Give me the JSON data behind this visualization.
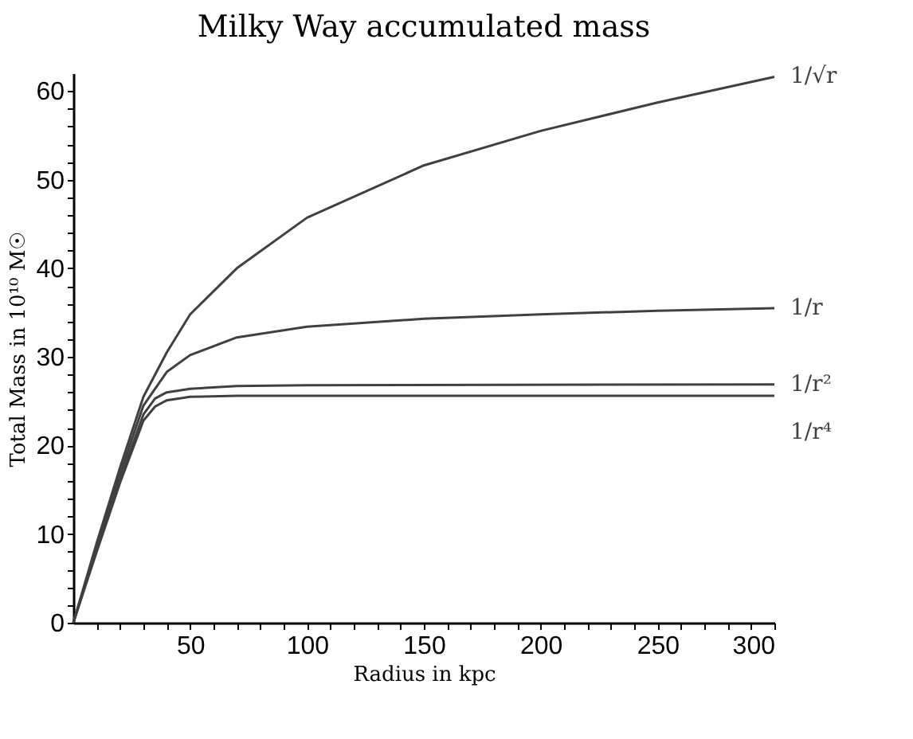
{
  "chart_data": {
    "type": "line",
    "title": "Milky Way accumulated mass",
    "xlabel": "Radius in kpc",
    "ylabel": "Total Mass in 10¹⁰ M☉",
    "xlim": [
      0,
      300
    ],
    "ylim": [
      0,
      62
    ],
    "xticks": [
      {
        "value": 10,
        "label": null
      },
      {
        "value": 20,
        "label": null
      },
      {
        "value": 30,
        "label": null
      },
      {
        "value": 40,
        "label": null
      },
      50,
      {
        "value": 60,
        "label": null
      },
      {
        "value": 70,
        "label": null
      },
      {
        "value": 80,
        "label": null
      },
      {
        "value": 90,
        "label": null
      },
      100,
      {
        "value": 110,
        "label": null
      },
      {
        "value": 120,
        "label": null
      },
      {
        "value": 130,
        "label": null
      },
      {
        "value": 140,
        "label": null
      },
      150,
      {
        "value": 160,
        "label": null
      },
      {
        "value": 170,
        "label": null
      },
      {
        "value": 180,
        "label": null
      },
      {
        "value": 190,
        "label": null
      },
      200,
      {
        "value": 210,
        "label": null
      },
      {
        "value": 220,
        "label": null
      },
      {
        "value": 230,
        "label": null
      },
      {
        "value": 240,
        "label": null
      },
      250,
      {
        "value": 260,
        "label": null
      },
      {
        "value": 270,
        "label": null
      },
      {
        "value": 280,
        "label": null
      },
      {
        "value": 290,
        "label": null
      },
      300
    ],
    "yticks": [
      0,
      {
        "value": 2,
        "label": null
      },
      {
        "value": 4,
        "label": null
      },
      {
        "value": 6,
        "label": null
      },
      {
        "value": 8,
        "label": null
      },
      10,
      {
        "value": 12,
        "label": null
      },
      {
        "value": 14,
        "label": null
      },
      {
        "value": 16,
        "label": null
      },
      {
        "value": 18,
        "label": null
      },
      20,
      {
        "value": 22,
        "label": null
      },
      {
        "value": 24,
        "label": null
      },
      {
        "value": 26,
        "label": null
      },
      {
        "value": 28,
        "label": null
      },
      30,
      {
        "value": 32,
        "label": null
      },
      {
        "value": 34,
        "label": null
      },
      {
        "value": 36,
        "label": null
      },
      {
        "value": 38,
        "label": null
      },
      40,
      {
        "value": 42,
        "label": null
      },
      {
        "value": 44,
        "label": null
      },
      {
        "value": 46,
        "label": null
      },
      {
        "value": 48,
        "label": null
      },
      50,
      {
        "value": 52,
        "label": null
      },
      {
        "value": 54,
        "label": null
      },
      {
        "value": 56,
        "label": null
      },
      {
        "value": 58,
        "label": null
      },
      60
    ],
    "grid": false,
    "legend": false,
    "marker": "none",
    "line_style": "solid",
    "series": [
      {
        "name": "1/√r",
        "color": "#404040",
        "x": [
          0,
          5,
          10,
          20,
          30,
          40,
          50,
          70,
          100,
          150,
          200,
          250,
          300
        ],
        "values": [
          0,
          4.5,
          9,
          17.5,
          25.5,
          30.5,
          34.8,
          40,
          45.7,
          51.6,
          55.5,
          58.7,
          61.6
        ]
      },
      {
        "name": "1/r",
        "color": "#404040",
        "x": [
          0,
          5,
          10,
          20,
          30,
          40,
          50,
          70,
          100,
          150,
          200,
          250,
          300
        ],
        "values": [
          0,
          4.3,
          8.6,
          16.8,
          24.5,
          28.3,
          30.2,
          32.2,
          33.4,
          34.3,
          34.8,
          35.2,
          35.5
        ]
      },
      {
        "name": "1/r²",
        "color": "#404040",
        "x": [
          0,
          5,
          10,
          20,
          30,
          35,
          40,
          50,
          70,
          100,
          300
        ],
        "values": [
          0,
          4.1,
          8.3,
          16.2,
          23.5,
          25.3,
          26,
          26.4,
          26.7,
          26.8,
          26.9
        ]
      },
      {
        "name": "1/r⁴",
        "color": "#404040",
        "x": [
          0,
          5,
          10,
          20,
          30,
          35,
          40,
          50,
          70,
          300
        ],
        "values": [
          0,
          4,
          8,
          15.8,
          22.8,
          24.4,
          25.1,
          25.5,
          25.6,
          25.6
        ]
      }
    ]
  }
}
